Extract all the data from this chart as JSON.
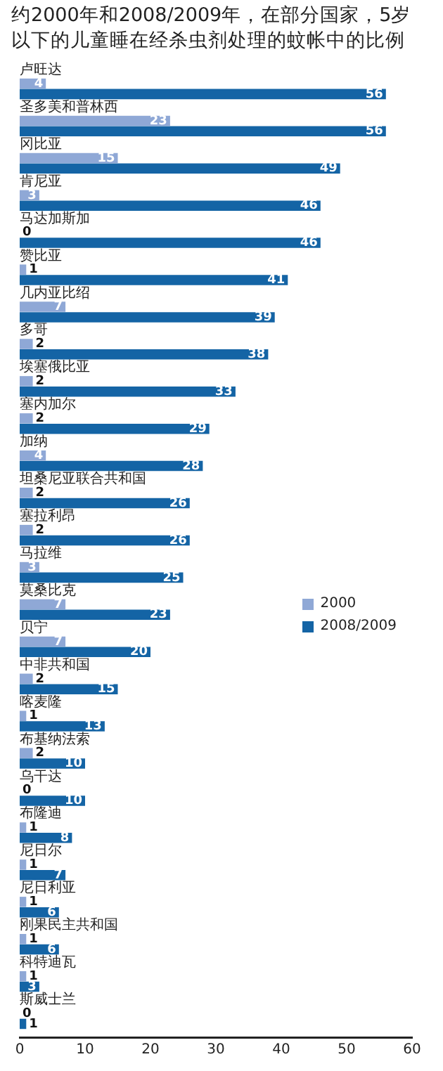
{
  "chart_data": {
    "type": "bar",
    "orientation": "horizontal",
    "title": "约2000年和2008/2009年，在部分国家，5岁以下的儿童睡在经杀虫剂处理的蚊帐中的比例",
    "categories": [
      "卢旺达",
      "圣多美和普林西",
      "冈比亚",
      "肯尼亚",
      "马达加斯加",
      "赞比亚",
      "几内亚比绍",
      "多哥",
      "埃塞俄比亚",
      "塞内加尔",
      "加纳",
      "坦桑尼亚联合共和国",
      "塞拉利昂",
      "马拉维",
      "莫桑比克",
      "贝宁",
      "中非共和国",
      "喀麦隆",
      "布基纳法索",
      "乌干达",
      "布隆迪",
      "尼日尔",
      "尼日利亚",
      "刚果民主共和国",
      "科特迪瓦",
      "斯威士兰"
    ],
    "series": [
      {
        "name": "2000",
        "color": "#8fa8d6",
        "values": [
          4,
          23,
          15,
          3,
          0,
          1,
          7,
          2,
          2,
          2,
          4,
          2,
          2,
          3,
          7,
          7,
          2,
          1,
          2,
          0,
          1,
          1,
          1,
          1,
          1,
          0
        ]
      },
      {
        "name": "2008/2009",
        "color": "#1464a5",
        "values": [
          56,
          56,
          49,
          46,
          46,
          41,
          39,
          38,
          33,
          29,
          28,
          26,
          26,
          25,
          23,
          20,
          15,
          13,
          10,
          10,
          8,
          7,
          6,
          6,
          3,
          1
        ]
      }
    ],
    "xlim": [
      0,
      60
    ],
    "xticks": [
      0,
      10,
      20,
      30,
      40,
      50,
      60
    ],
    "grid": false,
    "legend": "right",
    "data_labels": true
  }
}
